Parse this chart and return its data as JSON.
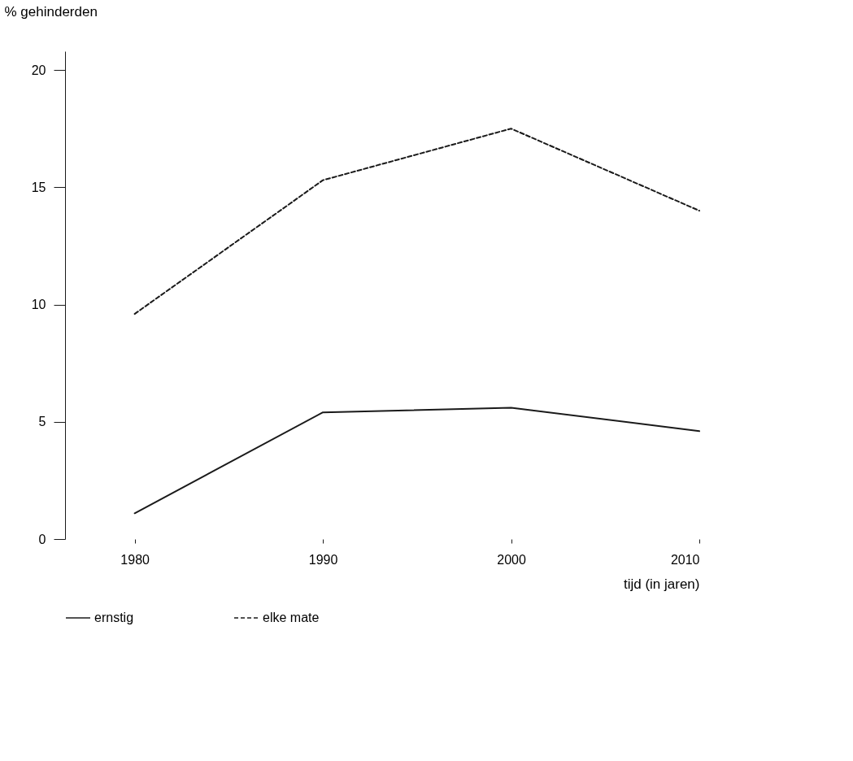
{
  "chart_data": {
    "type": "line",
    "ylabel": "% gehinderden",
    "xlabel": "tijd  (in jaren)",
    "x": [
      1980,
      1990,
      2000,
      2010
    ],
    "series": [
      {
        "name": "ernstig",
        "color": "#1a1a1a",
        "line_style": "solid",
        "values": [
          1.1,
          5.4,
          5.6,
          4.6
        ]
      },
      {
        "name": "elke mate",
        "color": "#1a1a1a",
        "line_style": "dashed",
        "values": [
          9.6,
          15.3,
          17.5,
          14.0
        ]
      }
    ],
    "xlim": [
      1976.3,
      2010
    ],
    "xticks": [
      1980,
      1990,
      2000,
      2010
    ],
    "ylim": [
      0,
      20.8
    ],
    "yticks": [
      0,
      5,
      10,
      15,
      20
    ],
    "grid": false,
    "legend": "bottom",
    "marker": "none"
  }
}
